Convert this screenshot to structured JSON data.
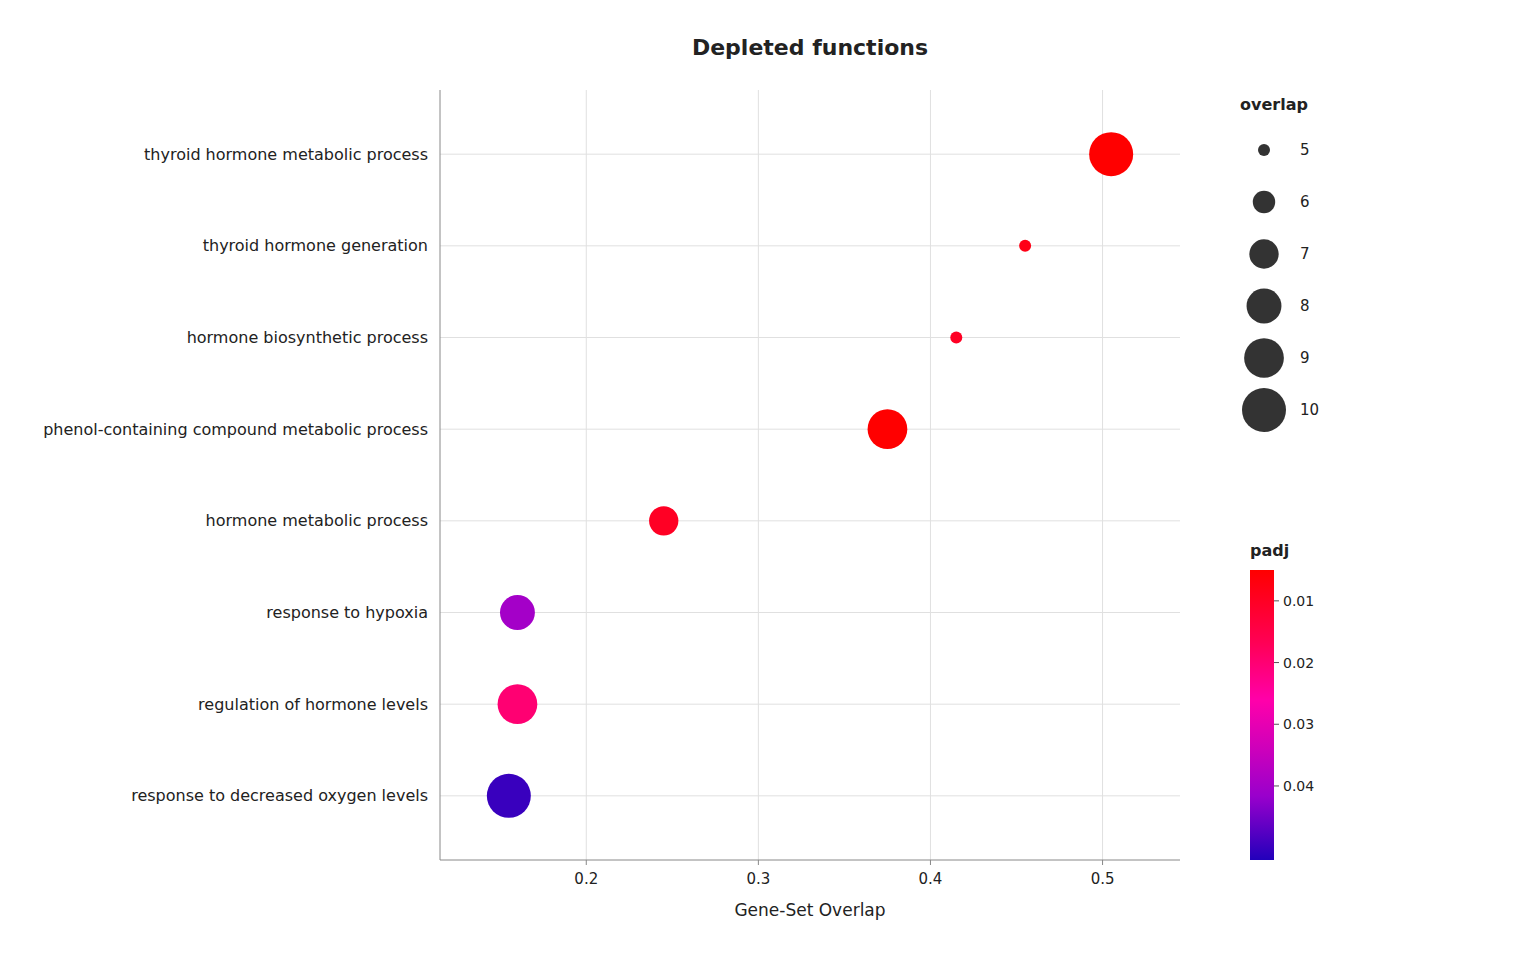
{
  "chart_data": {
    "type": "scatter",
    "title": "Depleted functions",
    "xlabel": "Gene-Set Overlap",
    "categories": [
      "thyroid hormone metabolic process",
      "thyroid hormone generation",
      "hormone biosynthetic process",
      "phenol-containing compound metabolic process",
      "hormone metabolic process",
      "response to hypoxia",
      "regulation of hormone levels",
      "response to decreased oxygen levels"
    ],
    "values": [
      0.505,
      0.455,
      0.415,
      0.375,
      0.245,
      0.16,
      0.16,
      0.155
    ],
    "sizes": [
      10,
      5,
      5,
      9,
      7,
      8,
      9,
      10
    ],
    "color_values": [
      0.003,
      0.008,
      0.01,
      0.003,
      0.01,
      0.04,
      0.02,
      0.05
    ],
    "xlim": [
      0.115,
      0.545
    ],
    "xticks": [
      0.2,
      0.3,
      0.4,
      0.5
    ],
    "grid": true,
    "size_legend_label": "overlap",
    "size_legend_values": [
      5,
      6,
      7,
      8,
      9,
      10
    ],
    "color_label": "padj",
    "color_range": [
      0.005,
      0.052
    ],
    "color_ticks": [
      0.01,
      0.02,
      0.03,
      0.04
    ],
    "color_scale": [
      "#FF0000",
      "#FF0055",
      "#FF00AA",
      "#CC00BB",
      "#9900CC",
      "#2200BB"
    ]
  }
}
